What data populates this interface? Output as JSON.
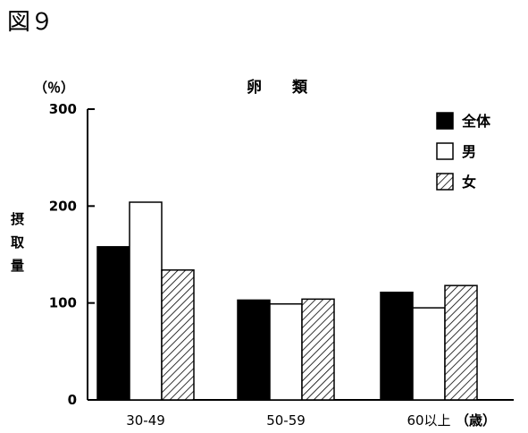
{
  "figure_label": "図９",
  "chart_data": {
    "type": "bar",
    "title": "卵　　類",
    "ylabel": "摂\n取\n量",
    "yunit": "（％）",
    "xlabel_suffix": "（歳）",
    "categories": [
      "30-49",
      "50-59",
      "60以上"
    ],
    "ylim": [
      0,
      300
    ],
    "yticks": [
      0,
      100,
      200,
      300
    ],
    "grid": false,
    "legend_position": "top-right",
    "series": [
      {
        "name": "全体",
        "values": [
          158,
          103,
          111
        ],
        "style": "solid",
        "color": "#000000"
      },
      {
        "name": "男",
        "values": [
          204,
          99,
          95
        ],
        "style": "outline",
        "color": "#ffffff"
      },
      {
        "name": "女",
        "values": [
          134,
          104,
          118
        ],
        "style": "hatched",
        "color": "#000000"
      }
    ]
  }
}
